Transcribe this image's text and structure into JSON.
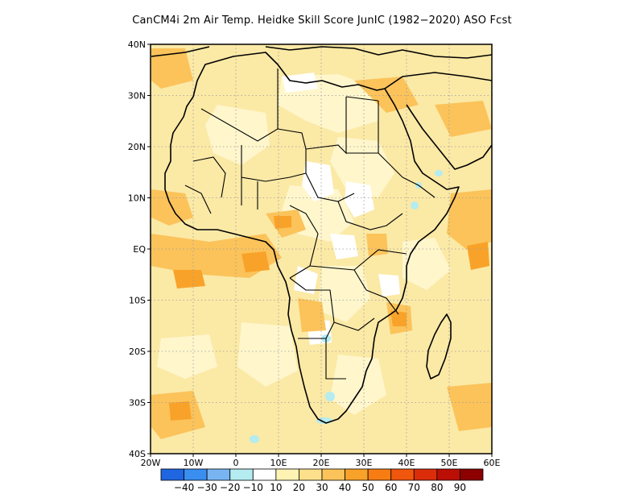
{
  "title": "CanCM4i  2m Air Temp. Heidke Skill Score JunIC (1982−2020) ASO Fcst",
  "map": {
    "lon_range": [
      -20,
      60
    ],
    "lat_range": [
      -40,
      40
    ],
    "lat_ticks": [
      {
        "value": 40,
        "label": "40N"
      },
      {
        "value": 30,
        "label": "30N"
      },
      {
        "value": 20,
        "label": "20N"
      },
      {
        "value": 10,
        "label": "10N"
      },
      {
        "value": 0,
        "label": "EQ"
      },
      {
        "value": -10,
        "label": "10S"
      },
      {
        "value": -20,
        "label": "20S"
      },
      {
        "value": -30,
        "label": "30S"
      },
      {
        "value": -40,
        "label": "40S"
      }
    ],
    "lon_ticks": [
      {
        "value": -20,
        "label": "20W"
      },
      {
        "value": -10,
        "label": "10W"
      },
      {
        "value": 0,
        "label": "0"
      },
      {
        "value": 10,
        "label": "10E"
      },
      {
        "value": 20,
        "label": "20E"
      },
      {
        "value": 30,
        "label": "30E"
      },
      {
        "value": 40,
        "label": "40E"
      },
      {
        "value": 50,
        "label": "50E"
      },
      {
        "value": 60,
        "label": "60E"
      }
    ],
    "gridlines": "dotted",
    "background_color": "#fbe9a6"
  },
  "colorbar": {
    "colors": [
      "#1f66e0",
      "#3a8ef0",
      "#78b4f2",
      "#b4ecf0",
      "#ffffff",
      "#fff3b4",
      "#fde08c",
      "#fbc35a",
      "#f9a229",
      "#f77d12",
      "#f0560e",
      "#db2d0a",
      "#bb0f05",
      "#8c0000"
    ],
    "labels": [
      "−40",
      "−30",
      "−20",
      "−10",
      "10",
      "20",
      "30",
      "40",
      "50",
      "60",
      "70",
      "80",
      "90"
    ]
  }
}
